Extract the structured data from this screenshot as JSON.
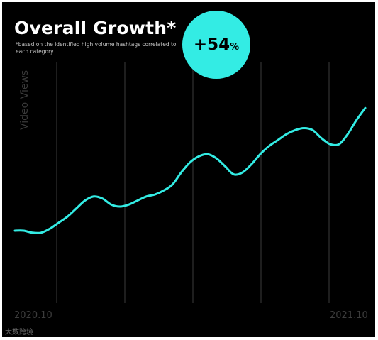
{
  "colors": {
    "background": "#000000",
    "line": "#33ece4",
    "badge": "#33ece4",
    "gridline": "#3b3b3b",
    "axis_text": "#3c3c3c"
  },
  "header": {
    "title": "Overall Growth*",
    "footnote": "*based on the identified high volume hashtags correlated to each category."
  },
  "badge": {
    "number": "+54",
    "unit": "%"
  },
  "watermark": {
    "text": "大数跨境"
  },
  "chart_data": {
    "type": "line",
    "title": "Overall Growth*",
    "xlabel": "",
    "ylabel": "Video Views",
    "x_tick_labels": [
      "2020.10",
      "2021.10"
    ],
    "x": [
      0,
      2,
      4,
      6,
      8,
      10,
      12,
      14,
      16,
      18,
      20,
      22,
      24,
      26,
      28,
      30,
      32,
      34,
      36,
      38,
      40,
      42,
      44,
      46,
      48,
      50,
      52,
      54,
      56,
      58,
      60,
      62,
      64,
      66,
      68,
      70,
      72,
      74,
      76,
      78,
      80
    ],
    "y": [
      36,
      36,
      35,
      35,
      37,
      40,
      43,
      47,
      51,
      53,
      52,
      49,
      48,
      49,
      51,
      53,
      54,
      56,
      59,
      65,
      70,
      73,
      74,
      72,
      68,
      64,
      65,
      69,
      74,
      78,
      81,
      84,
      86,
      87,
      86,
      82,
      79,
      79,
      84,
      91,
      97
    ],
    "ylim": [
      0,
      120
    ],
    "vertical_gridlines": 5,
    "horizontal_grid": false,
    "legend": "none"
  }
}
